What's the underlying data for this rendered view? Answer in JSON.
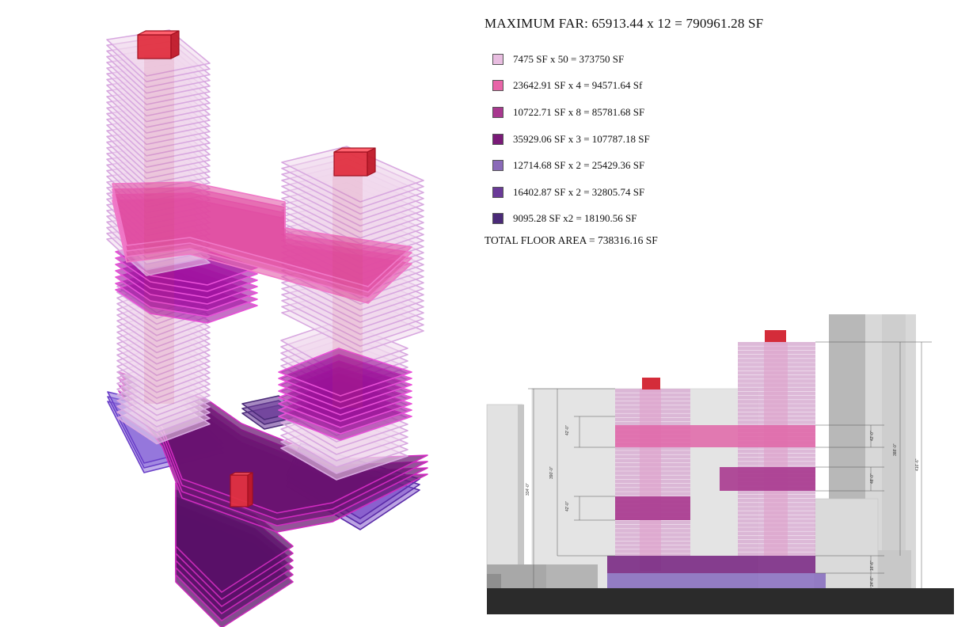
{
  "header": {
    "title": "MAXIMUM FAR: 65913.44 x 12 = 790961.28 SF"
  },
  "legend": [
    {
      "label": "7475 SF x 50 = 373750 SF",
      "color": "#e8bde0"
    },
    {
      "label": "23642.91 SF x 4 = 94571.64 Sf",
      "color": "#e865a8"
    },
    {
      "label": "10722.71 SF x 8 = 85781.68 SF",
      "color": "#a8388f"
    },
    {
      "label": "35929.06 SF x 3 = 107787.18 SF",
      "color": "#7a1a78"
    },
    {
      "label": "12714.68 SF x 2 = 25429.36 SF",
      "color": "#8a6ab8"
    },
    {
      "label": "16402.87 SF x 2 = 32805.74 SF",
      "color": "#6a3a98"
    },
    {
      "label": "9095.28 SF x2 = 18190.56 SF",
      "color": "#4a2a78"
    }
  ],
  "summary": {
    "total": "TOTAL FLOOR AREA = 738316.16 SF"
  },
  "elevation": {
    "dimensions": [
      "42'-0\"",
      "42'-0\"",
      "390'-0\"",
      "334'-0\"",
      "42'-0\"",
      "388'-0\"",
      "48'-0\"",
      "416'-6\"",
      "16'-6\"",
      "24'-6\""
    ]
  }
}
